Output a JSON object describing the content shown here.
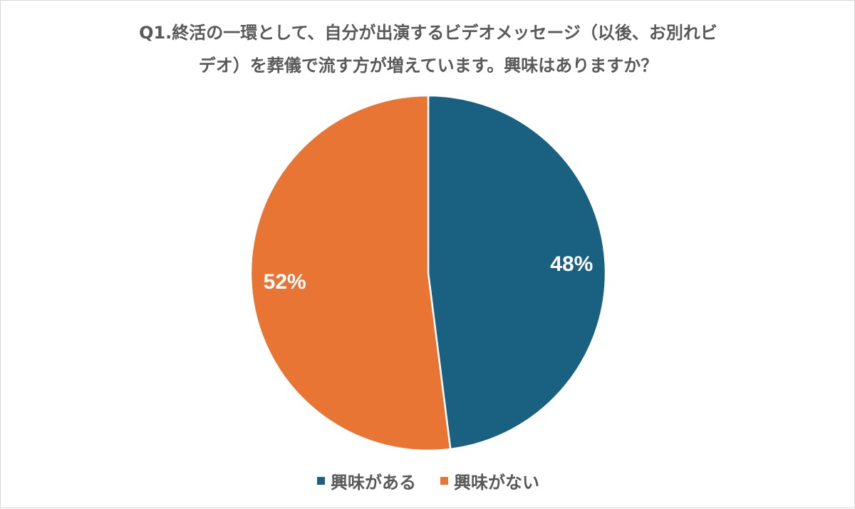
{
  "chart_data": {
    "type": "pie",
    "title_lines": [
      "Q1.終活の一環として、自分が出演するビデオメッセージ（以後、お別れビ",
      "デオ）を葬儀で流す方が増えています。興味はありますか？"
    ],
    "categories": [
      "興味がある",
      "興味がない"
    ],
    "values": [
      48,
      52
    ],
    "value_labels": [
      "48%",
      "52%"
    ],
    "colors": [
      "#1a6080",
      "#e97534"
    ],
    "start_angle": "12 o'clock",
    "direction": "clockwise",
    "legend_position": "bottom",
    "slice_border_color": "#ffffff"
  }
}
